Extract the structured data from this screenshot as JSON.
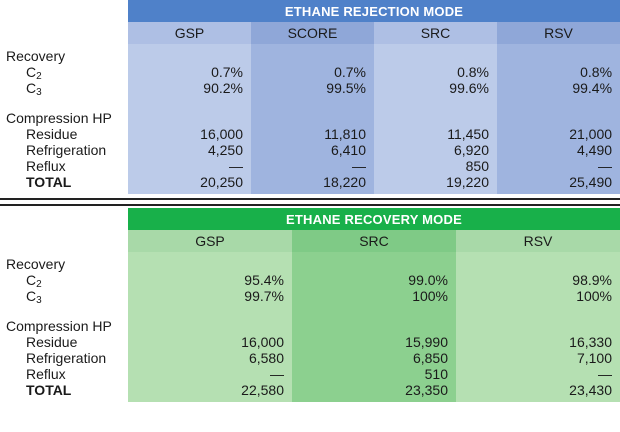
{
  "rejection": {
    "title": "ETHANE REJECTION MODE",
    "columns": [
      "GSP",
      "SCORE",
      "SRC",
      "RSV"
    ],
    "section1_label": "Recovery",
    "c2_sym": "C",
    "c2_sub": "2",
    "c3_sym": "C",
    "c3_sub": "3",
    "c2_values": [
      "0.7%",
      "0.7%",
      "0.8%",
      "0.8%"
    ],
    "c3_values": [
      "90.2%",
      "99.5%",
      "99.6%",
      "99.4%"
    ],
    "section2_label": "Compression HP",
    "residue_label": "Residue",
    "residue_values": [
      "16,000",
      "11,810",
      "11,450",
      "21,000"
    ],
    "refrigeration_label": "Refrigeration",
    "refrigeration_values": [
      "4,250",
      "6,410",
      "6,920",
      "4,490"
    ],
    "reflux_label": "Reflux",
    "reflux_values": [
      "—",
      "—",
      "850",
      "—"
    ],
    "total_label": "TOTAL",
    "total_values": [
      "20,250",
      "18,220",
      "19,220",
      "25,490"
    ]
  },
  "recovery": {
    "title": "ETHANE RECOVERY MODE",
    "columns": [
      "GSP",
      "SRC",
      "RSV"
    ],
    "section1_label": "Recovery",
    "c2_sym": "C",
    "c2_sub": "2",
    "c3_sym": "C",
    "c3_sub": "3",
    "c2_values": [
      "95.4%",
      "99.0%",
      "98.9%"
    ],
    "c3_values": [
      "99.7%",
      "100%",
      "100%"
    ],
    "section2_label": "Compression HP",
    "residue_label": "Residue",
    "residue_values": [
      "16,000",
      "15,990",
      "16,330"
    ],
    "refrigeration_label": "Refrigeration",
    "refrigeration_values": [
      "6,580",
      "6,850",
      "7,100"
    ],
    "reflux_label": "Reflux",
    "reflux_values": [
      "—",
      "510",
      "—"
    ],
    "total_label": "TOTAL",
    "total_values": [
      "22,580",
      "23,350",
      "23,430"
    ]
  }
}
